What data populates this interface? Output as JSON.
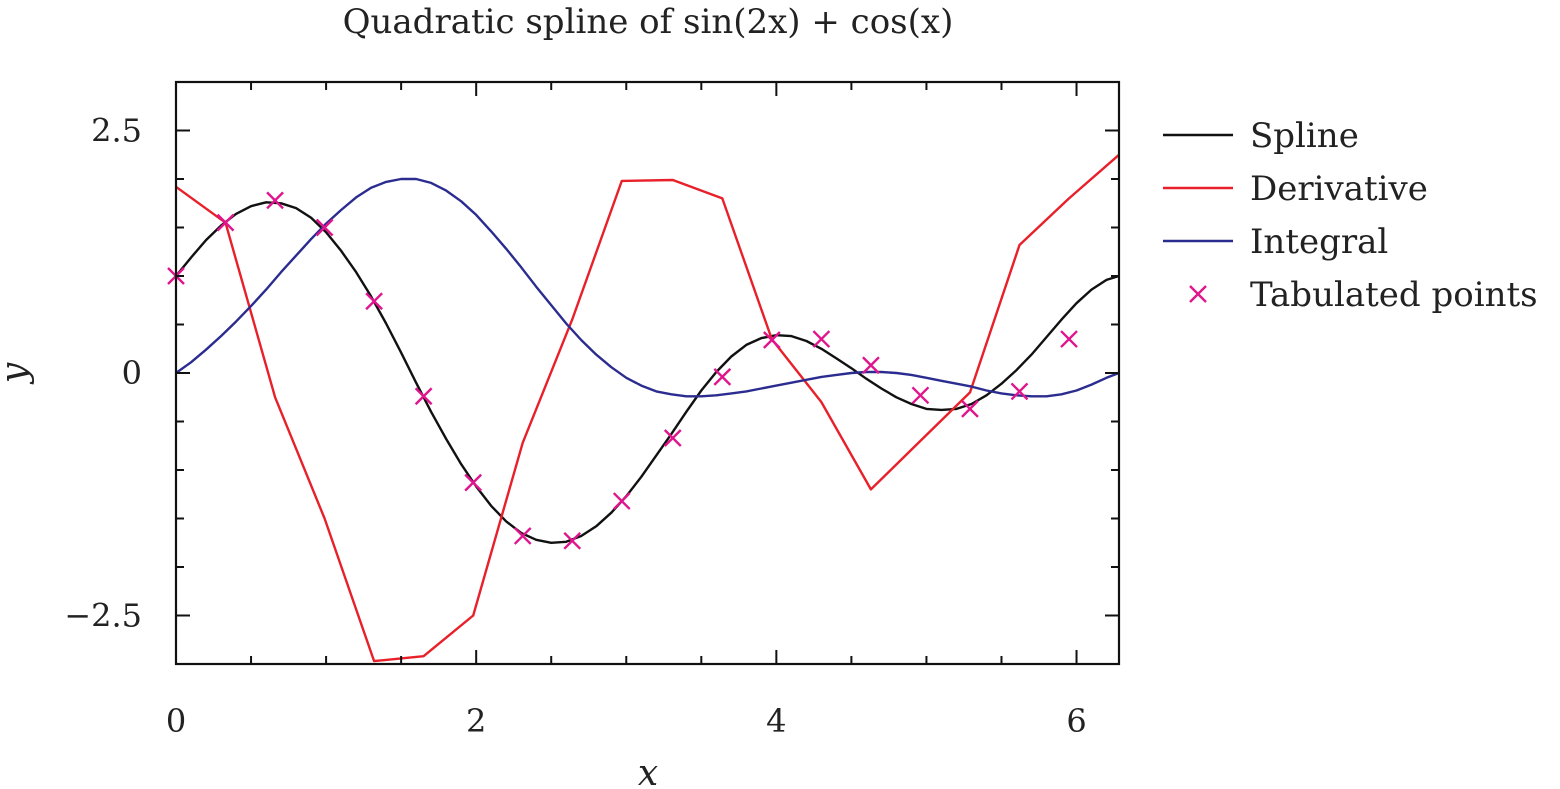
{
  "chart_data": {
    "type": "line",
    "title": "Quadratic spline of sin(2x) + cos(x)",
    "xlabel": "x",
    "ylabel": "y",
    "xlim": [
      0,
      6.283
    ],
    "ylim": [
      -3.0,
      3.0
    ],
    "xticks": [
      {
        "value": 0,
        "label": "0"
      },
      {
        "value": 2,
        "label": "2"
      },
      {
        "value": 4,
        "label": "4"
      },
      {
        "value": 6,
        "label": "6"
      }
    ],
    "yticks": [
      {
        "value": 2.5,
        "label": "2.5"
      },
      {
        "value": 0,
        "label": "0"
      },
      {
        "value": -2.5,
        "label": "−2.5"
      }
    ],
    "x_minor_step": 0.5,
    "y_minor_step": 0.5,
    "legend_position": "outside-right",
    "grid": false,
    "series": [
      {
        "name": "Spline",
        "color": "#111111",
        "style": "line",
        "x": [
          0,
          0.1,
          0.2,
          0.3,
          0.4,
          0.5,
          0.6,
          0.7,
          0.8,
          0.9,
          1.0,
          1.1,
          1.2,
          1.3,
          1.4,
          1.5,
          1.6,
          1.7,
          1.8,
          1.9,
          2.0,
          2.1,
          2.2,
          2.3,
          2.4,
          2.5,
          2.6,
          2.7,
          2.8,
          2.9,
          3.0,
          3.1,
          3.2,
          3.3,
          3.4,
          3.5,
          3.6,
          3.7,
          3.8,
          3.9,
          4.0,
          4.1,
          4.2,
          4.3,
          4.4,
          4.5,
          4.6,
          4.7,
          4.8,
          4.9,
          5.0,
          5.1,
          5.2,
          5.3,
          5.4,
          5.5,
          5.6,
          5.7,
          5.8,
          5.9,
          6.0,
          6.1,
          6.2,
          6.283
        ],
        "y": [
          1.0,
          1.19,
          1.37,
          1.52,
          1.64,
          1.72,
          1.76,
          1.75,
          1.7,
          1.6,
          1.45,
          1.26,
          1.04,
          0.79,
          0.51,
          0.21,
          -0.1,
          -0.4,
          -0.68,
          -0.94,
          -1.17,
          -1.37,
          -1.53,
          -1.65,
          -1.72,
          -1.75,
          -1.74,
          -1.68,
          -1.58,
          -1.44,
          -1.27,
          -1.07,
          -0.85,
          -0.63,
          -0.4,
          -0.18,
          0.01,
          0.17,
          0.29,
          0.36,
          0.39,
          0.38,
          0.33,
          0.25,
          0.15,
          0.05,
          -0.06,
          -0.16,
          -0.25,
          -0.32,
          -0.37,
          -0.38,
          -0.37,
          -0.32,
          -0.23,
          -0.11,
          0.03,
          0.19,
          0.37,
          0.55,
          0.72,
          0.86,
          0.96,
          1.0
        ]
      },
      {
        "name": "Derivative",
        "color": "#e8202a",
        "style": "line",
        "x": [
          0,
          0.33,
          0.66,
          0.99,
          1.32,
          1.65,
          1.98,
          2.31,
          2.64,
          2.97,
          3.31,
          3.64,
          3.97,
          4.3,
          4.63,
          4.96,
          5.29,
          5.62,
          5.95,
          6.283
        ],
        "y": [
          1.92,
          1.55,
          -0.25,
          -1.5,
          -2.97,
          -2.92,
          -2.5,
          -0.72,
          0.55,
          1.98,
          1.99,
          1.8,
          0.35,
          -0.3,
          -1.2,
          -0.7,
          -0.2,
          1.32,
          1.8,
          2.25
        ]
      },
      {
        "name": "Integral",
        "color": "#2b2c8f",
        "style": "line",
        "x": [
          0,
          0.1,
          0.2,
          0.3,
          0.4,
          0.5,
          0.6,
          0.7,
          0.8,
          0.9,
          1.0,
          1.1,
          1.2,
          1.3,
          1.4,
          1.5,
          1.6,
          1.7,
          1.8,
          1.9,
          2.0,
          2.1,
          2.2,
          2.3,
          2.4,
          2.5,
          2.6,
          2.7,
          2.8,
          2.9,
          3.0,
          3.1,
          3.2,
          3.3,
          3.4,
          3.5,
          3.6,
          3.7,
          3.8,
          3.9,
          4.0,
          4.1,
          4.2,
          4.3,
          4.4,
          4.5,
          4.6,
          4.7,
          4.8,
          4.9,
          5.0,
          5.1,
          5.2,
          5.3,
          5.4,
          5.5,
          5.6,
          5.7,
          5.8,
          5.9,
          6.0,
          6.1,
          6.2,
          6.283
        ],
        "y": [
          0,
          0.11,
          0.24,
          0.38,
          0.53,
          0.69,
          0.86,
          1.04,
          1.21,
          1.38,
          1.54,
          1.68,
          1.81,
          1.91,
          1.97,
          2.0,
          2.0,
          1.96,
          1.88,
          1.77,
          1.63,
          1.46,
          1.28,
          1.09,
          0.89,
          0.7,
          0.51,
          0.34,
          0.19,
          0.06,
          -0.05,
          -0.13,
          -0.19,
          -0.22,
          -0.24,
          -0.24,
          -0.23,
          -0.21,
          -0.19,
          -0.16,
          -0.13,
          -0.1,
          -0.07,
          -0.04,
          -0.02,
          0.0,
          0.01,
          0.01,
          0.0,
          -0.02,
          -0.05,
          -0.08,
          -0.11,
          -0.14,
          -0.18,
          -0.21,
          -0.23,
          -0.24,
          -0.24,
          -0.22,
          -0.18,
          -0.12,
          -0.05,
          0.0
        ]
      },
      {
        "name": "Tabulated points",
        "color": "#e0158e",
        "style": "marker-x",
        "x": [
          0,
          0.33,
          0.66,
          0.99,
          1.32,
          1.65,
          1.98,
          2.31,
          2.64,
          2.97,
          3.31,
          3.64,
          3.97,
          4.3,
          4.63,
          4.96,
          5.29,
          5.62,
          5.95
        ],
        "y": [
          1.0,
          1.55,
          1.78,
          1.5,
          0.74,
          -0.24,
          -1.13,
          -1.68,
          -1.73,
          -1.32,
          -0.67,
          -0.04,
          0.34,
          0.35,
          0.08,
          -0.23,
          -0.37,
          -0.19,
          0.35
        ]
      }
    ]
  }
}
